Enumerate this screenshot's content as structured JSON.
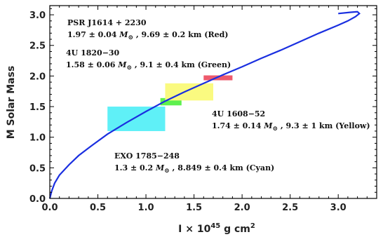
{
  "chart_data": {
    "type": "line",
    "title": "",
    "xlabel": "I × 10⁴⁵ g cm²",
    "xlabel_parts": {
      "pre": "I × 10",
      "exp": "45",
      "unit": " g cm",
      "unit_exp": "2"
    },
    "ylabel": "M  Solar  Mass",
    "xlim": [
      0,
      3.4
    ],
    "ylim": [
      0,
      3.15
    ],
    "xticks": [
      "0.0",
      "0.5",
      "1.0",
      "1.5",
      "2.0",
      "2.5",
      "3.0"
    ],
    "yticks": [
      "0.0",
      "0.5",
      "1.0",
      "1.5",
      "2.0",
      "2.5",
      "3.0"
    ],
    "grid": false,
    "series": [
      {
        "color": "#1a2fe0",
        "x": [
          0.0,
          0.02,
          0.05,
          0.1,
          0.2,
          0.3,
          0.45,
          0.6,
          0.8,
          1.0,
          1.2,
          1.4,
          1.6,
          1.8,
          2.0,
          2.2,
          2.4,
          2.6,
          2.8,
          3.0,
          3.1,
          3.18,
          3.22,
          3.2,
          3.12,
          3.0
        ],
        "y": [
          0.0,
          0.12,
          0.25,
          0.38,
          0.55,
          0.7,
          0.88,
          1.05,
          1.24,
          1.42,
          1.59,
          1.74,
          1.88,
          2.02,
          2.15,
          2.29,
          2.42,
          2.56,
          2.7,
          2.83,
          2.9,
          2.97,
          3.02,
          3.05,
          3.04,
          3.02
        ]
      }
    ],
    "boxes": [
      {
        "label": "Cyan",
        "color": "#5ff0f7",
        "x": [
          0.6,
          1.2
        ],
        "y": [
          1.1,
          1.5
        ]
      },
      {
        "label": "Green",
        "color": "#5ef04e",
        "x": [
          1.15,
          1.37
        ],
        "y": [
          1.52,
          1.64
        ]
      },
      {
        "label": "Yellow",
        "color": "#fafa80",
        "x": [
          1.2,
          1.7
        ],
        "y": [
          1.6,
          1.88
        ]
      },
      {
        "label": "Red",
        "color": "#ee5a6c",
        "x": [
          1.6,
          1.9
        ],
        "y": [
          1.93,
          2.01
        ]
      }
    ],
    "annotations": [
      {
        "name": "PSR J1614 + 2230",
        "detail_pre": "1.97 ± 0.04 ",
        "detail_post": " , 9.69 ± 0.2 km (Red)"
      },
      {
        "name": "4U 1820−30",
        "detail_pre": "1.58 ± 0.06 ",
        "detail_post": " , 9.1 ± 0.4 km (Green)"
      },
      {
        "name": "4U 1608−52",
        "detail_pre": "1.74 ± 0.14 ",
        "detail_post": " , 9.3 ± 1 km (Yellow)"
      },
      {
        "name": "EXO 1785−248",
        "detail_pre": "1.3 ± 0.2 ",
        "detail_post": " , 8.849 ± 0.4 km (Cyan)"
      }
    ],
    "mass_symbol": {
      "letter": "M",
      "subscript": "⊙"
    }
  }
}
